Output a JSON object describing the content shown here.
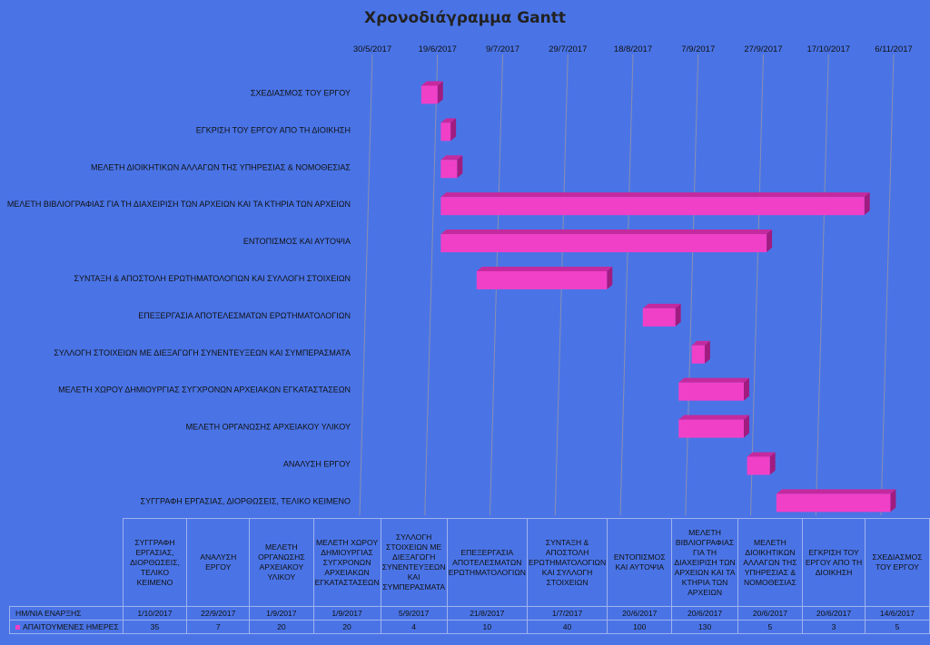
{
  "chart_data": {
    "type": "gantt",
    "title": "Χρονοδιάγραμμα Gantt",
    "x_ticks": [
      "30/5/2017",
      "19/6/2017",
      "9/7/2017",
      "29/7/2017",
      "18/8/2017",
      "7/9/2017",
      "27/9/2017",
      "17/10/2017",
      "6/11/2017"
    ],
    "xlim": [
      "2017-05-30",
      "2017-11-06"
    ],
    "bar_color": "#F040C8",
    "background_color": "#4A74E6",
    "tasks": [
      {
        "label": "ΣΧΕΔΙΑΣΜΟΣ ΤΟΥ ΕΡΓΟΥ",
        "start": "2017-06-14",
        "days": 5
      },
      {
        "label": "ΕΓΚΡΙΣΗ ΤΟΥ ΕΡΓΟΥ ΑΠΟ ΤΗ ΔΙΟΙΚΗΣΗ",
        "start": "2017-06-20",
        "days": 3
      },
      {
        "label": "ΜΕΛΕΤΗ ΔΙΟΙΚΗΤΙΚΩΝ ΑΛΛΑΓΩΝ ΤΗΣ ΥΠΗΡΕΣΙΑΣ & ΝΟΜΟΘΕΣΙΑΣ",
        "start": "2017-06-20",
        "days": 5
      },
      {
        "label": "ΜΕΛΕΤΗ ΒΙΒΛΙΟΓΡΑΦΙΑΣ ΓΙΑ ΤΗ ΔΙΑΧΕΙΡΙΣΗ ΤΩΝ ΑΡΧΕΙΩΝ ΚΑΙ ΤΑ ΚΤΗΡΙΑ ΤΩΝ ΑΡΧΕΙΩΝ",
        "start": "2017-06-20",
        "days": 130
      },
      {
        "label": "ΕΝΤΟΠΙΣΜΟΣ ΚΑΙ ΑΥΤΟΨΙΑ",
        "start": "2017-06-20",
        "days": 100
      },
      {
        "label": "ΣΥΝΤΑΞΗ & ΑΠΟΣΤΟΛΗ ΕΡΩΤΗΜΑΤΟΛΟΓΙΩΝ ΚΑΙ ΣΥΛΛΟΓΗ ΣΤΟΙΧΕΙΩΝ",
        "start": "2017-07-01",
        "days": 40
      },
      {
        "label": "ΕΠΕΞΕΡΓΑΣΙΑ ΑΠΟΤΕΛΕΣΜΑΤΩΝ ΕΡΩΤΗΜΑΤΟΛΟΓΙΩΝ",
        "start": "2017-08-21",
        "days": 10
      },
      {
        "label": "ΣΥΛΛΟΓΗ ΣΤΟΙΧΕΙΩΝ ΜΕ ΔΙΕΞΑΓΩΓΗ ΣΥΝΕΝΤΕΥΞΕΩΝ ΚΑΙ  ΣΥΜΠΕΡΑΣΜΑΤΑ",
        "start": "2017-09-05",
        "days": 4
      },
      {
        "label": "ΜΕΛΕΤΗ ΧΩΡΟΥ ΔΗΜΙΟΥΡΓΙΑΣ ΣΥΓΧΡΟΝΩΝ ΑΡΧΕΙΑΚΩΝ ΕΓΚΑΤΑΣΤΑΣΕΩΝ",
        "start": "2017-09-01",
        "days": 20
      },
      {
        "label": "ΜΕΛΕΤΗ ΟΡΓΑΝΩΣΗΣ ΑΡΧΕΙΑΚΟΥ ΥΛΙΚΟΥ",
        "start": "2017-09-01",
        "days": 20
      },
      {
        "label": "ΑΝΑΛΥΣΗ ΕΡΓΟΥ",
        "start": "2017-09-22",
        "days": 7
      },
      {
        "label": "ΣΥΓΓΡΑΦΗ ΕΡΓΑΣΙΑΣ, ΔΙΟΡΘΩΣΕΙΣ, ΤΕΛΙΚΟ ΚΕΙΜΕΝΟ",
        "start": "2017-10-01",
        "days": 35
      }
    ]
  },
  "table": {
    "columns": [
      "ΣΥΓΓΡΑΦΗ ΕΡΓΑΣΙΑΣ, ΔΙΟΡΘΩΣΕΙΣ, ΤΕΛΙΚΟ ΚΕΙΜΕΝΟ",
      "ΑΝΑΛΥΣΗ ΕΡΓΟΥ",
      "ΜΕΛΕΤΗ ΟΡΓΑΝΩΣΗΣ ΑΡΧΕΙΑΚΟΥ ΥΛΙΚΟΥ",
      "ΜΕΛΕΤΗ ΧΩΡΟΥ ΔΗΜΙΟΥΡΓΙΑΣ ΣΥΓΧΡΟΝΩΝ ΑΡΧΕΙΑΚΩΝ ΕΓΚΑΤΑΣΤΑΣΕΩΝ",
      "ΣΥΛΛΟΓΗ ΣΤΟΙΧΕΙΩΝ ΜΕ ΔΙΕΞΑΓΩΓΗ ΣΥΝΕΝΤΕΥΞΕΩΝ ΚΑΙ ΣΥΜΠΕΡΑΣΜΑΤΑ",
      "ΕΠΕΞΕΡΓΑΣΙΑ ΑΠΟΤΕΛΕΣΜΑΤΩΝ ΕΡΩΤΗΜΑΤΟΛΟΓΙΩΝ",
      "ΣΥΝΤΑΞΗ & ΑΠΟΣΤΟΛΗ ΕΡΩΤΗΜΑΤΟΛΟΓΙΩΝ ΚΑΙ ΣΥΛΛΟΓΗ ΣΤΟΙΧΕΙΩΝ",
      "ΕΝΤΟΠΙΣΜΟΣ ΚΑΙ ΑΥΤΟΨΙΑ",
      "ΜΕΛΕΤΗ ΒΙΒΛΙΟΓΡΑΦΙΑΣ ΓΙΑ ΤΗ ΔΙΑΧΕΙΡΙΣΗ ΤΩΝ ΑΡΧΕΙΩΝ ΚΑΙ ΤΑ ΚΤΗΡΙΑ ΤΩΝ ΑΡΧΕΙΩΝ",
      "ΜΕΛΕΤΗ ΔΙΟΙΚΗΤΙΚΩΝ ΑΛΛΑΓΩΝ ΤΗΣ ΥΠΗΡΕΣΙΑΣ & ΝΟΜΟΘΕΣΙΑΣ",
      "ΕΓΚΡΙΣΗ ΤΟΥ ΕΡΓΟΥ ΑΠΟ ΤΗ ΔΙΟΙΚΗΣΗ",
      "ΣΧΕΔΙΑΣΜΟΣ ΤΟΥ ΕΡΓΟΥ"
    ],
    "rows": [
      {
        "label": "ΗΜ/ΝΙΑ ΕΝΑΡΞΗΣ",
        "legend": false,
        "values": [
          "1/10/2017",
          "22/9/2017",
          "1/9/2017",
          "1/9/2017",
          "5/9/2017",
          "21/8/2017",
          "1/7/2017",
          "20/6/2017",
          "20/6/2017",
          "20/6/2017",
          "20/6/2017",
          "14/6/2017"
        ]
      },
      {
        "label": "ΑΠΑΙΤΟΥΜΕΝΕΣ ΗΜΕΡΕΣ",
        "legend": true,
        "values": [
          "35",
          "7",
          "20",
          "20",
          "4",
          "10",
          "40",
          "100",
          "130",
          "5",
          "3",
          "5"
        ]
      }
    ]
  }
}
